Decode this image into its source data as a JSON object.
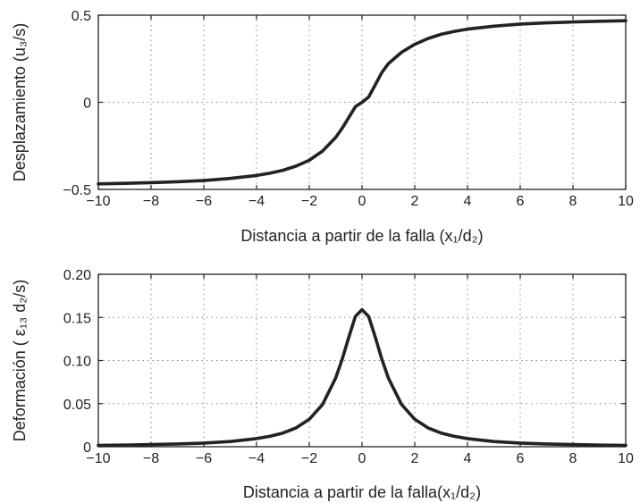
{
  "chart_data": [
    {
      "type": "line",
      "xlabel": "Distancia a partir de la falla (x₁/d₂)",
      "ylabel": "Desplazamiento (u₃/s)",
      "xlim": [
        -10,
        10
      ],
      "ylim": [
        -0.5,
        0.5
      ],
      "xticks": [
        "−10",
        "−8",
        "−6",
        "−4",
        "−2",
        "0",
        "2",
        "4",
        "6",
        "8",
        "10"
      ],
      "yticks": [
        "−0.5",
        "0",
        "0.5"
      ],
      "grid": true,
      "x": [
        -10,
        -9,
        -8,
        -7,
        -6,
        -5,
        -4,
        -3.5,
        -3,
        -2.5,
        -2,
        -1.5,
        -1,
        -0.75,
        -0.5,
        -0.25,
        0,
        0.25,
        0.5,
        0.75,
        1,
        1.5,
        2,
        2.5,
        3,
        3.5,
        4,
        5,
        6,
        7,
        8,
        9,
        10
      ],
      "y": [
        -0.468,
        -0.465,
        -0.461,
        -0.456,
        -0.449,
        -0.437,
        -0.42,
        -0.407,
        -0.39,
        -0.366,
        -0.333,
        -0.28,
        -0.202,
        -0.148,
        -0.086,
        -0.025,
        0,
        0.03,
        0.1,
        0.17,
        0.222,
        0.287,
        0.333,
        0.366,
        0.39,
        0.407,
        0.42,
        0.437,
        0.449,
        0.456,
        0.461,
        0.465,
        0.468
      ]
    },
    {
      "type": "line",
      "xlabel": "Distancia a partir de la falla(x₁/d₂)",
      "ylabel": "Deformación ( ε₁₃ d₂/s)",
      "xlim": [
        -10,
        10
      ],
      "ylim": [
        0,
        0.2
      ],
      "xticks": [
        "−10",
        "−8",
        "−6",
        "−4",
        "−2",
        "0",
        "2",
        "4",
        "6",
        "8",
        "10"
      ],
      "yticks": [
        "0",
        "0.05",
        "0.10",
        "0.15",
        "0.20"
      ],
      "grid": true,
      "x": [
        -10,
        -9,
        -8,
        -7,
        -6,
        -5,
        -4,
        -3.5,
        -3,
        -2.5,
        -2,
        -1.5,
        -1,
        -0.75,
        -0.5,
        -0.25,
        0,
        0.25,
        0.5,
        0.75,
        1,
        1.5,
        2,
        2.5,
        3,
        3.5,
        4,
        5,
        6,
        7,
        8,
        9,
        10
      ],
      "y": [
        0.0016,
        0.0019,
        0.0025,
        0.0032,
        0.0043,
        0.006,
        0.0094,
        0.012,
        0.0159,
        0.0219,
        0.0318,
        0.0489,
        0.0796,
        0.1018,
        0.1273,
        0.1512,
        0.159,
        0.1512,
        0.1273,
        0.1018,
        0.0796,
        0.0489,
        0.0318,
        0.0219,
        0.0159,
        0.012,
        0.0094,
        0.006,
        0.0043,
        0.0032,
        0.0025,
        0.0019,
        0.0016
      ]
    }
  ]
}
